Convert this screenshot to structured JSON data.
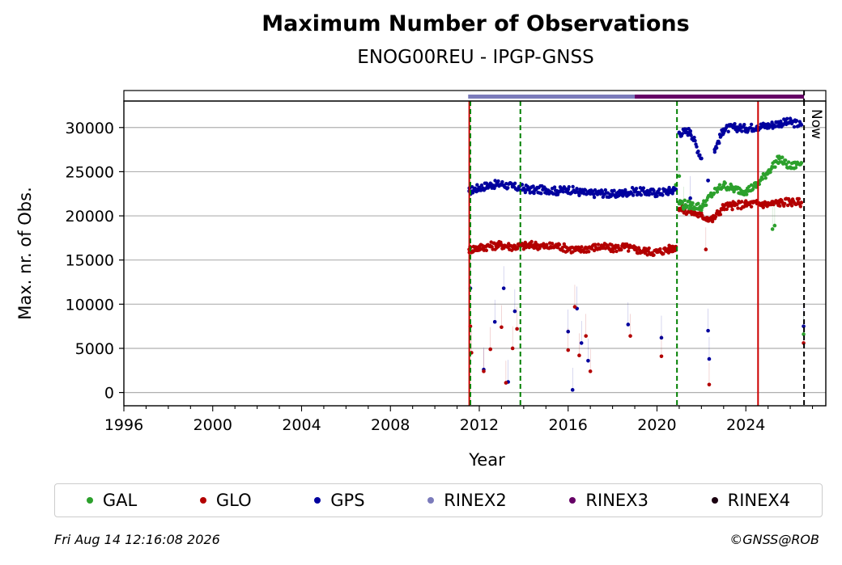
{
  "chart_data": {
    "type": "scatter",
    "title": "Maximum Number of Observations",
    "subtitle": "ENOG00REU - IPGP-GNSS",
    "xlabel": "Year",
    "ylabel": "Max. nr. of Obs.",
    "xlim": [
      1996,
      2027.6
    ],
    "ylim": [
      -1500,
      33000
    ],
    "x_ticks": [
      "1996",
      "2000",
      "2004",
      "2008",
      "2012",
      "2016",
      "2020",
      "2024"
    ],
    "y_ticks": [
      "0",
      "5000",
      "10000",
      "15000",
      "20000",
      "25000",
      "30000"
    ],
    "grid": "horizontal",
    "legend_position": "bottom",
    "now_label": "Now",
    "vertical_lines": [
      {
        "x": 2011.55,
        "color": "#cc0000",
        "style": "solid"
      },
      {
        "x": 2011.6,
        "color": "#008000",
        "style": "dashed"
      },
      {
        "x": 2013.85,
        "color": "#008000",
        "style": "dashed"
      },
      {
        "x": 2020.9,
        "color": "#008000",
        "style": "dashed"
      },
      {
        "x": 2024.55,
        "color": "#cc0000",
        "style": "solid"
      },
      {
        "x": 2026.62,
        "color": "#000000",
        "style": "dashed"
      }
    ],
    "rinex_bars": [
      {
        "name": "RINEX2",
        "color": "#7b7bbb",
        "start": 2011.5,
        "end": 2019.0
      },
      {
        "name": "RINEX3",
        "color": "#660066",
        "start": 2019.0,
        "end": 2026.62
      }
    ],
    "series": [
      {
        "name": "GPS",
        "color": "#00009e",
        "x": [
          2011.55,
          2012.0,
          2012.5,
          2013.0,
          2013.5,
          2014.0,
          2014.5,
          2015.0,
          2015.5,
          2016.0,
          2016.5,
          2017.0,
          2017.5,
          2018.0,
          2018.5,
          2019.0,
          2019.5,
          2020.0,
          2020.5,
          2020.85,
          2021.0,
          2021.5,
          2022.0,
          2022.3,
          2022.6,
          2023.0,
          2023.5,
          2024.0,
          2024.5,
          2025.0,
          2025.5,
          2026.0,
          2026.5
        ],
        "y": [
          22800,
          23200,
          23500,
          23600,
          23300,
          23100,
          22900,
          23000,
          22800,
          23000,
          22700,
          22500,
          22600,
          22400,
          22600,
          22800,
          22700,
          22600,
          22800,
          23000,
          29400,
          29600,
          26500,
          24000,
          27500,
          29800,
          30000,
          29900,
          30100,
          30200,
          30500,
          30600,
          30300
        ]
      },
      {
        "name": "GLO",
        "color": "#b30000",
        "x": [
          2011.55,
          2012.0,
          2012.5,
          2013.0,
          2013.5,
          2014.0,
          2014.5,
          2015.0,
          2015.5,
          2016.0,
          2016.5,
          2017.0,
          2017.5,
          2018.0,
          2018.5,
          2019.0,
          2019.5,
          2020.0,
          2020.5,
          2020.85,
          2021.0,
          2021.5,
          2022.0,
          2022.5,
          2023.0,
          2023.5,
          2024.0,
          2024.5,
          2025.0,
          2025.5,
          2026.0,
          2026.5
        ],
        "y": [
          16200,
          16400,
          16600,
          16700,
          16500,
          16600,
          16700,
          16500,
          16600,
          16300,
          16100,
          16400,
          16500,
          16300,
          16500,
          16200,
          16000,
          15900,
          16200,
          16500,
          20800,
          20500,
          20000,
          19600,
          21000,
          21200,
          21300,
          21400,
          21300,
          21500,
          21600,
          21500
        ]
      },
      {
        "name": "GAL",
        "color": "#2ca02c",
        "x": [
          2020.85,
          2021.0,
          2021.5,
          2022.0,
          2022.5,
          2023.0,
          2023.5,
          2024.0,
          2024.5,
          2025.0,
          2025.5,
          2026.0,
          2026.5
        ],
        "y": [
          23500,
          21500,
          21200,
          21000,
          22500,
          23500,
          23000,
          22800,
          23500,
          25000,
          26500,
          25500,
          26000
        ]
      }
    ],
    "outliers": {
      "GPS": {
        "x": [
          2011.6,
          2012.2,
          2012.7,
          2013.1,
          2013.3,
          2013.6,
          2016.0,
          2016.2,
          2016.4,
          2016.6,
          2016.9,
          2018.7,
          2020.2,
          2021.5,
          2022.3,
          2022.35,
          2026.6
        ],
        "y": [
          11800,
          2600,
          8000,
          11800,
          1200,
          9200,
          6900,
          300,
          9500,
          5600,
          3600,
          7700,
          6200,
          22000,
          7000,
          3800,
          7500
        ]
      },
      "GLO": {
        "x": [
          2011.6,
          2011.65,
          2012.2,
          2012.5,
          2013.0,
          2013.2,
          2013.5,
          2013.7,
          2016.0,
          2016.3,
          2016.5,
          2016.8,
          2017.0,
          2018.8,
          2020.2,
          2022.2,
          2022.35,
          2026.6
        ],
        "y": [
          7500,
          4500,
          2400,
          4900,
          7400,
          1100,
          5000,
          7200,
          4800,
          9700,
          4200,
          6400,
          2400,
          6400,
          4100,
          16200,
          900,
          5600
        ]
      },
      "GAL": {
        "x": [
          2021.0,
          2021.2,
          2025.2,
          2025.3,
          2026.6
        ],
        "y": [
          24500,
          20800,
          18500,
          18900,
          6600
        ]
      }
    },
    "legend": [
      {
        "name": "GAL",
        "color": "#2ca02c"
      },
      {
        "name": "GLO",
        "color": "#b30000"
      },
      {
        "name": "GPS",
        "color": "#00009e"
      },
      {
        "name": "RINEX2",
        "color": "#7b7bbb"
      },
      {
        "name": "RINEX3",
        "color": "#660066"
      },
      {
        "name": "RINEX4",
        "color": "#1a0010"
      }
    ]
  },
  "footer": {
    "timestamp": "Fri Aug 14 12:16:08 2026",
    "credit": "©GNSS@ROB"
  }
}
